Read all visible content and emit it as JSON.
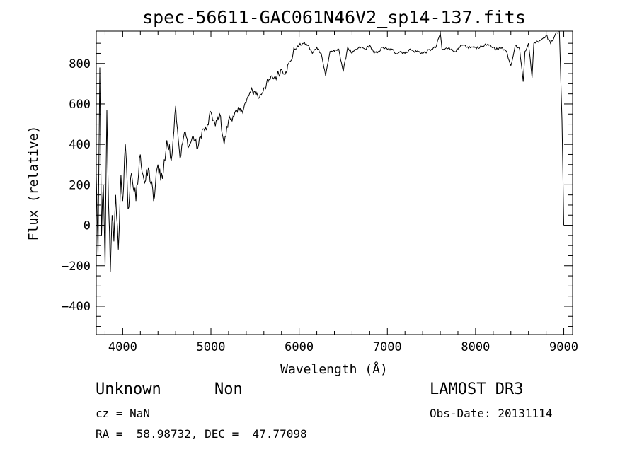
{
  "chart_data": {
    "type": "line",
    "title": "spec-56611-GAC061N46V2_sp14-137.fits",
    "xlabel": "Wavelength (Å)",
    "ylabel": "Flux (relative)",
    "xlim": [
      3700,
      9100
    ],
    "ylim": [
      -540,
      960
    ],
    "xticks": [
      "4000",
      "5000",
      "6000",
      "7000",
      "8000",
      "9000"
    ],
    "yticks": [
      "−400",
      "−200",
      "0",
      "200",
      "400",
      "600",
      "800"
    ],
    "xtick_values": [
      4000,
      5000,
      6000,
      7000,
      8000,
      9000
    ],
    "ytick_values": [
      -400,
      -200,
      0,
      200,
      400,
      600,
      800
    ],
    "series": [
      {
        "name": "flux",
        "x": [
          3700,
          3720,
          3740,
          3760,
          3780,
          3800,
          3820,
          3840,
          3860,
          3880,
          3900,
          3920,
          3950,
          3980,
          4000,
          4030,
          4060,
          4100,
          4150,
          4200,
          4250,
          4300,
          4350,
          4400,
          4450,
          4500,
          4550,
          4600,
          4650,
          4700,
          4750,
          4800,
          4850,
          4900,
          4950,
          5000,
          5050,
          5100,
          5150,
          5200,
          5250,
          5300,
          5350,
          5400,
          5450,
          5500,
          5550,
          5600,
          5650,
          5700,
          5750,
          5800,
          5850,
          5900,
          5950,
          6000,
          6050,
          6100,
          6150,
          6200,
          6250,
          6300,
          6350,
          6400,
          6450,
          6500,
          6550,
          6600,
          6650,
          6700,
          6750,
          6800,
          6850,
          6900,
          6950,
          7000,
          7050,
          7100,
          7150,
          7200,
          7250,
          7300,
          7350,
          7400,
          7450,
          7500,
          7550,
          7600,
          7620,
          7650,
          7700,
          7750,
          7800,
          7850,
          7900,
          7950,
          8000,
          8050,
          8100,
          8150,
          8200,
          8250,
          8300,
          8350,
          8400,
          8450,
          8500,
          8540,
          8560,
          8600,
          8640,
          8660,
          8700,
          8750,
          8800,
          8850,
          8900,
          8950,
          8980,
          9000
        ],
        "values": [
          250,
          -150,
          780,
          -50,
          200,
          -200,
          570,
          100,
          -230,
          50,
          -80,
          150,
          -120,
          250,
          120,
          400,
          80,
          260,
          120,
          350,
          210,
          270,
          120,
          300,
          230,
          420,
          320,
          590,
          330,
          460,
          390,
          440,
          380,
          470,
          470,
          560,
          490,
          550,
          400,
          520,
          540,
          560,
          570,
          610,
          660,
          660,
          630,
          680,
          710,
          730,
          740,
          770,
          760,
          810,
          870,
          890,
          900,
          890,
          850,
          880,
          850,
          740,
          860,
          860,
          870,
          760,
          880,
          850,
          870,
          880,
          870,
          890,
          850,
          860,
          880,
          870,
          870,
          850,
          860,
          850,
          870,
          860,
          860,
          850,
          860,
          870,
          880,
          950,
          870,
          870,
          880,
          860,
          870,
          890,
          880,
          880,
          880,
          880,
          890,
          890,
          880,
          870,
          880,
          860,
          790,
          890,
          870,
          710,
          860,
          900,
          730,
          900,
          910,
          920,
          940,
          900,
          940,
          960,
          520,
          0
        ]
      }
    ]
  },
  "info": {
    "object_class": "Unknown",
    "subclass": "Non",
    "survey": "LAMOST DR3",
    "cz": "cz = NaN",
    "obs_date": "Obs-Date: 20131114",
    "coords": "RA =  58.98732, DEC =  47.77098"
  }
}
